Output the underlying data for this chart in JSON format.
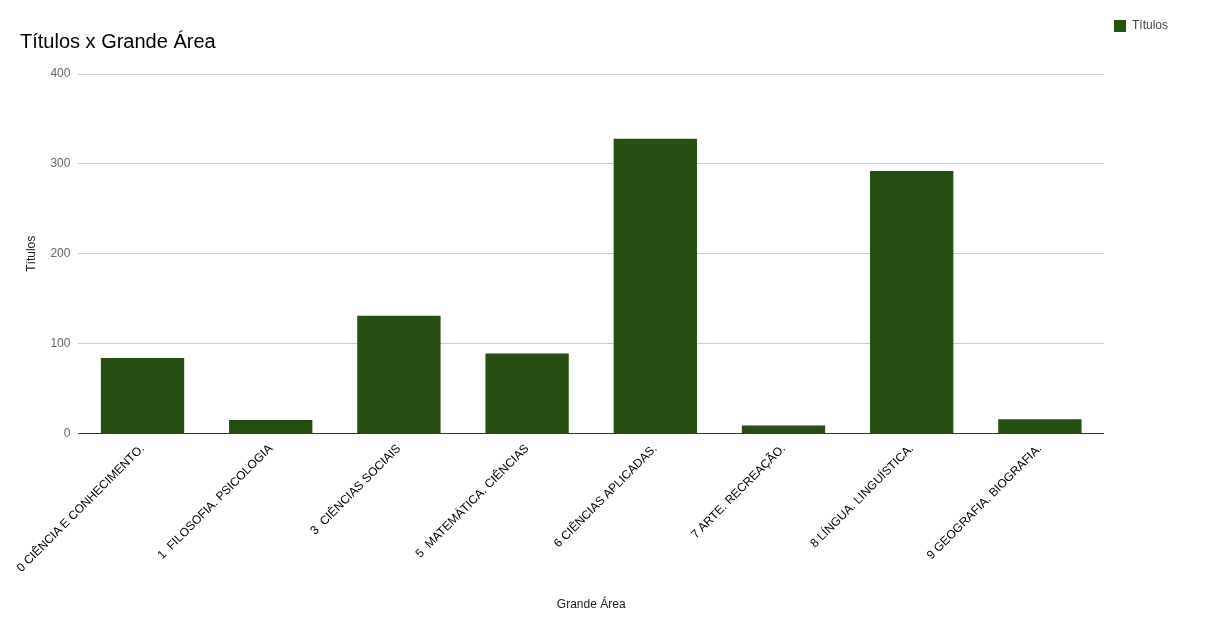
{
  "chart_data": {
    "type": "bar",
    "title": "Títulos x Grande Área",
    "xlabel": "Grande Área",
    "ylabel": "Títulos",
    "categories": [
      "0 CIÊNCIA E CONHECIMENTO.",
      "1  FILOSOFIA. PSICOLOGIA",
      "3  CIÊNCIAS SOCIAIS",
      "5  MATEMÁTICA. CIÊNCIAS",
      "6 CIÊNCIAS APLICADAS.",
      "7 ARTE. RECREAÇÃO.",
      "8 LÍNGUA. LINGUÍSTICA.",
      "9 GEOGRAFIA. BIOGRAFIA."
    ],
    "series": [
      {
        "name": "Títulos",
        "color": "#274e13",
        "values": [
          84,
          15,
          131,
          89,
          328,
          9,
          292,
          16
        ]
      }
    ],
    "ylim": [
      0,
      400
    ],
    "yticks": [
      0,
      100,
      200,
      300,
      400
    ],
    "grid": "y",
    "legend": "top right"
  }
}
